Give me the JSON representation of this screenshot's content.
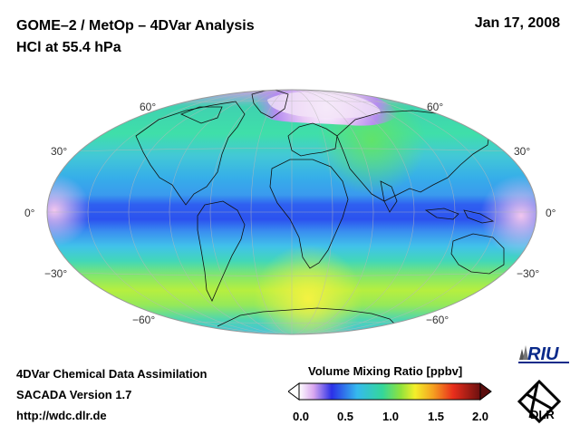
{
  "header": {
    "title": "GOME–2 / MetOp – 4DVar Analysis",
    "subtitle": "HCl at 55.4 hPa",
    "date": "Jan 17, 2008"
  },
  "map": {
    "projection": "Mollweide",
    "latitude_labels": {
      "n60": "60°",
      "n30": "30°",
      "eq": "0°",
      "s30": "−30°",
      "s60": "−60°"
    }
  },
  "footer": {
    "line1": "4DVar Chemical Data Assimilation",
    "line2": "SACADA Version 1.7",
    "line3": "http://wdc.dlr.de"
  },
  "colorbar": {
    "title": "Volume Mixing Ratio [ppbv]",
    "ticks": [
      "0.0",
      "0.5",
      "1.0",
      "1.5",
      "2.0"
    ],
    "min": 0.0,
    "max": 2.0
  },
  "logos": {
    "riu": "RIU",
    "dlr": "DLR"
  },
  "colors": {
    "ocean_band": "#2f5ff0",
    "tropics": "#37bde9",
    "midlat": "#3cd7a8",
    "antarctic": "#bff23b",
    "arctic_high": "#e3b4ef"
  }
}
